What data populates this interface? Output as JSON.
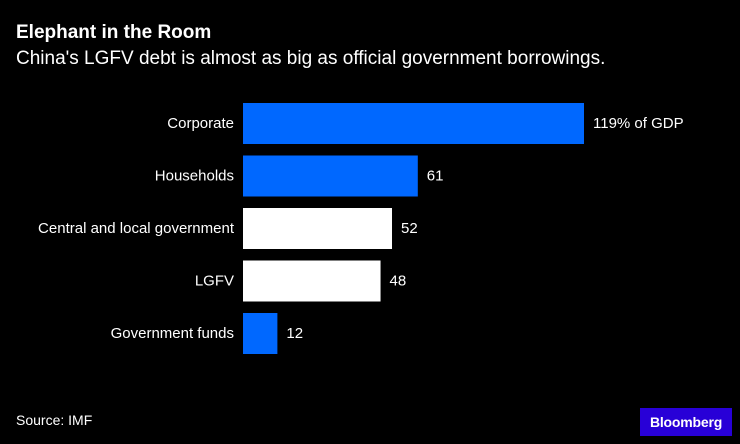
{
  "title": "Elephant in the Room",
  "subtitle": "China's LGFV debt is almost as big as official government borrowings.",
  "source": "Source: IMF",
  "logo": "Bloomberg",
  "colors": {
    "background": "#000000",
    "highlight": "#0068ff",
    "neutral": "#ffffff",
    "text": "#ffffff",
    "logo_bg": "#2800d7"
  },
  "chart_data": {
    "type": "bar",
    "orientation": "horizontal",
    "title": "Elephant in the Room",
    "subtitle": "China's LGFV debt is almost as big as official government borrowings.",
    "unit": "% of GDP",
    "categories": [
      "Corporate",
      "Households",
      "Central and local government",
      "LGFV",
      "Government funds"
    ],
    "values": [
      119,
      61,
      52,
      48,
      12
    ],
    "value_labels": [
      "119% of GDP",
      "61",
      "52",
      "48",
      "12"
    ],
    "bar_colors": [
      "highlight",
      "highlight",
      "neutral",
      "neutral",
      "highlight"
    ],
    "xlim": [
      0,
      119
    ],
    "grid": false,
    "xlabel": "",
    "ylabel": ""
  }
}
